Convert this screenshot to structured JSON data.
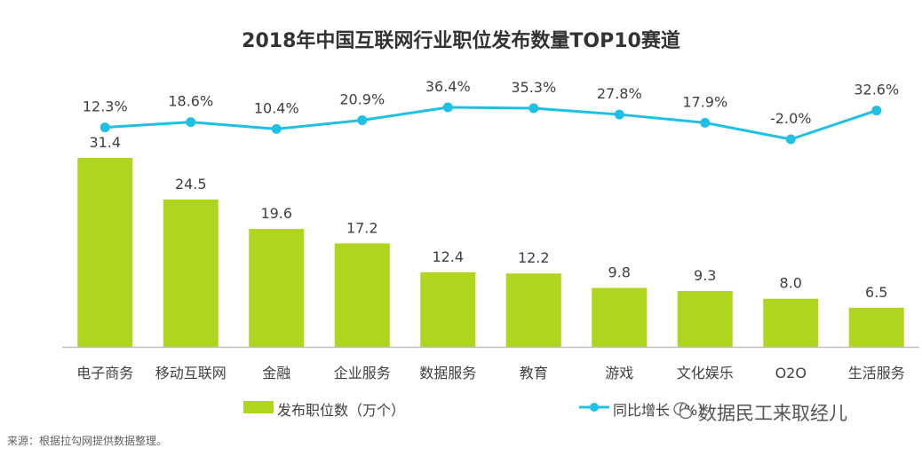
{
  "chart_data": {
    "type": "bar+line",
    "title": "2018年中国互联网行业职位发布数量TOP10赛道",
    "categories": [
      "电子商务",
      "移动互联网",
      "金融",
      "企业服务",
      "数据服务",
      "教育",
      "游戏",
      "文化娱乐",
      "O2O",
      "生活服务"
    ],
    "series": [
      {
        "name": "发布职位数（万个）",
        "type": "bar",
        "values": [
          31.4,
          24.5,
          19.6,
          17.2,
          12.4,
          12.2,
          9.8,
          9.3,
          8.0,
          6.5
        ],
        "labels": [
          "31.4",
          "24.5",
          "19.6",
          "17.2",
          "12.4",
          "12.2",
          "9.8",
          "9.3",
          "8.0",
          "6.5"
        ]
      },
      {
        "name": "同比增长（%）",
        "type": "line",
        "values": [
          12.3,
          18.6,
          10.4,
          20.9,
          36.4,
          35.3,
          27.8,
          17.9,
          -2.0,
          32.6
        ],
        "labels": [
          "12.3%",
          "18.6%",
          "10.4%",
          "20.9%",
          "36.4%",
          "35.3%",
          "27.8%",
          "17.9%",
          "-2.0%",
          "32.6%"
        ]
      }
    ],
    "bar_ylim": [
      0,
      35
    ],
    "line_ylim": [
      -2,
      36.4
    ],
    "legend_position": "bottom",
    "colors": {
      "bar": "#b0d51f",
      "line": "#1ec0e5",
      "axis": "#bfbfbf"
    }
  },
  "legend": {
    "bar_label": "发布职位数（万个）",
    "line_label": "同比增长（%）"
  },
  "source": "来源：根据拉勾网提供数据整理。",
  "watermark": "数据民工来取经儿"
}
